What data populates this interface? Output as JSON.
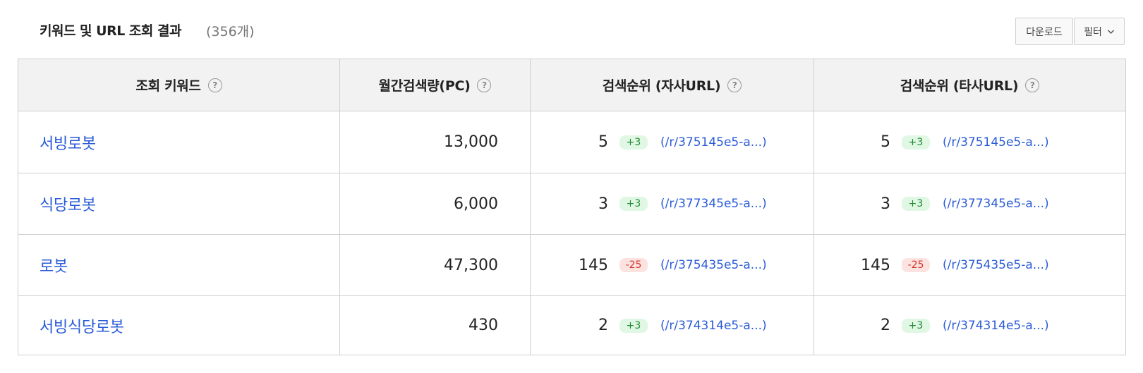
{
  "header": {
    "title": "키워드 및 URL 조회 결과",
    "count": "(356개)",
    "download_label": "다운로드",
    "filter_label": "필터"
  },
  "table": {
    "columns": [
      {
        "label": "조회 키워드",
        "help": "?"
      },
      {
        "label": "월간검색량(PC)",
        "help": "?"
      },
      {
        "label": "검색순위 (자사URL)",
        "help": "?"
      },
      {
        "label": "검색순위 (타사URL)",
        "help": "?"
      }
    ],
    "rows": [
      {
        "keyword": "서빙로봇",
        "volume": "13,000",
        "own": {
          "rank": "5",
          "change": "+3",
          "direction": "up",
          "url": "(/r/375145e5-a...)"
        },
        "other": {
          "rank": "5",
          "change": "+3",
          "direction": "up",
          "url": "(/r/375145e5-a...)"
        }
      },
      {
        "keyword": "식당로봇",
        "volume": "6,000",
        "own": {
          "rank": "3",
          "change": "+3",
          "direction": "up",
          "url": "(/r/377345e5-a...)"
        },
        "other": {
          "rank": "3",
          "change": "+3",
          "direction": "up",
          "url": "(/r/377345e5-a...)"
        }
      },
      {
        "keyword": "로봇",
        "volume": "47,300",
        "own": {
          "rank": "145",
          "change": "-25",
          "direction": "down",
          "url": "(/r/375435e5-a...)"
        },
        "other": {
          "rank": "145",
          "change": "-25",
          "direction": "down",
          "url": "(/r/375435e5-a...)"
        }
      },
      {
        "keyword": "서빙식당로봇",
        "volume": "430",
        "own": {
          "rank": "2",
          "change": "+3",
          "direction": "up",
          "url": "(/r/374314e5-a...)"
        },
        "other": {
          "rank": "2",
          "change": "+3",
          "direction": "up",
          "url": "(/r/374314e5-a...)"
        }
      }
    ]
  },
  "colors": {
    "link": "#2a5bd7",
    "badge_up_bg": "#e0f7e4",
    "badge_up_text": "#1f8a34",
    "badge_down_bg": "#fde3e0",
    "badge_down_text": "#d0342c",
    "header_bg": "#f2f2f2"
  }
}
